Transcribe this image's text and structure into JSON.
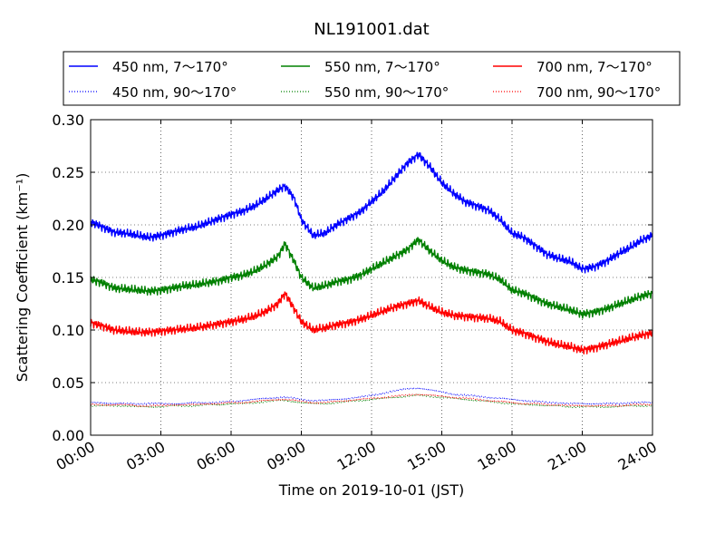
{
  "chart_data": {
    "type": "line",
    "title": "NL191001.dat",
    "xlabel": "Time on 2019-10-01 (JST)",
    "ylabel": "Scattering Coefficient (km⁻¹)",
    "xlim": [
      0,
      24
    ],
    "ylim": [
      0.0,
      0.3
    ],
    "xticks": [
      0,
      3,
      6,
      9,
      12,
      15,
      18,
      21,
      24
    ],
    "xtick_labels": [
      "00:00",
      "03:00",
      "06:00",
      "09:00",
      "12:00",
      "15:00",
      "18:00",
      "21:00",
      "24:00"
    ],
    "yticks": [
      0.0,
      0.05,
      0.1,
      0.15,
      0.2,
      0.25,
      0.3
    ],
    "ytick_labels": [
      "0.00",
      "0.05",
      "0.10",
      "0.15",
      "0.20",
      "0.25",
      "0.30"
    ],
    "grid": true,
    "legend_position": "top",
    "x_hours": [
      0,
      0.5,
      1,
      1.5,
      2,
      2.5,
      3,
      3.5,
      4,
      4.5,
      5,
      5.5,
      6,
      6.5,
      7,
      7.5,
      8,
      8.3,
      8.7,
      9,
      9.5,
      10,
      10.5,
      11,
      11.5,
      12,
      12.5,
      13,
      13.5,
      14,
      14.5,
      15,
      15.5,
      16,
      16.5,
      17,
      17.5,
      18,
      18.5,
      19,
      19.5,
      20,
      20.5,
      21,
      21.5,
      22,
      22.5,
      23,
      23.5,
      24
    ],
    "series": [
      {
        "name": "450 nm, 7～170°",
        "color": "#0000ff",
        "style": "solid",
        "values": [
          0.203,
          0.198,
          0.193,
          0.192,
          0.19,
          0.188,
          0.19,
          0.193,
          0.196,
          0.198,
          0.202,
          0.206,
          0.21,
          0.213,
          0.218,
          0.225,
          0.233,
          0.237,
          0.225,
          0.205,
          0.19,
          0.192,
          0.2,
          0.206,
          0.212,
          0.222,
          0.232,
          0.245,
          0.258,
          0.267,
          0.255,
          0.24,
          0.23,
          0.222,
          0.218,
          0.214,
          0.205,
          0.192,
          0.188,
          0.18,
          0.172,
          0.168,
          0.165,
          0.158,
          0.16,
          0.165,
          0.172,
          0.178,
          0.185,
          0.19
        ]
      },
      {
        "name": "450 nm, 90～170°",
        "color": "#0000ff",
        "style": "dotted",
        "values": [
          0.031,
          0.031,
          0.03,
          0.03,
          0.03,
          0.03,
          0.03,
          0.03,
          0.03,
          0.031,
          0.031,
          0.031,
          0.032,
          0.033,
          0.034,
          0.035,
          0.036,
          0.036,
          0.035,
          0.034,
          0.033,
          0.033,
          0.034,
          0.035,
          0.036,
          0.038,
          0.04,
          0.042,
          0.044,
          0.045,
          0.043,
          0.041,
          0.039,
          0.038,
          0.037,
          0.036,
          0.035,
          0.034,
          0.033,
          0.032,
          0.031,
          0.031,
          0.03,
          0.03,
          0.03,
          0.03,
          0.03,
          0.031,
          0.031,
          0.031
        ]
      },
      {
        "name": "550 nm, 7～170°",
        "color": "#008000",
        "style": "solid",
        "values": [
          0.148,
          0.145,
          0.14,
          0.139,
          0.138,
          0.137,
          0.138,
          0.14,
          0.142,
          0.143,
          0.145,
          0.147,
          0.15,
          0.152,
          0.156,
          0.162,
          0.17,
          0.182,
          0.165,
          0.15,
          0.14,
          0.142,
          0.146,
          0.148,
          0.152,
          0.158,
          0.164,
          0.17,
          0.176,
          0.186,
          0.175,
          0.166,
          0.16,
          0.157,
          0.155,
          0.153,
          0.148,
          0.138,
          0.135,
          0.13,
          0.125,
          0.122,
          0.119,
          0.115,
          0.117,
          0.12,
          0.124,
          0.128,
          0.132,
          0.135
        ]
      },
      {
        "name": "550 nm, 90～170°",
        "color": "#008000",
        "style": "dotted",
        "values": [
          0.028,
          0.028,
          0.028,
          0.028,
          0.027,
          0.027,
          0.027,
          0.028,
          0.028,
          0.028,
          0.029,
          0.029,
          0.03,
          0.03,
          0.031,
          0.032,
          0.033,
          0.033,
          0.032,
          0.031,
          0.03,
          0.03,
          0.031,
          0.032,
          0.033,
          0.034,
          0.035,
          0.036,
          0.037,
          0.038,
          0.037,
          0.036,
          0.035,
          0.034,
          0.033,
          0.032,
          0.031,
          0.03,
          0.029,
          0.029,
          0.028,
          0.028,
          0.027,
          0.027,
          0.027,
          0.027,
          0.027,
          0.028,
          0.028,
          0.028
        ]
      },
      {
        "name": "700 nm, 7～170°",
        "color": "#ff0000",
        "style": "solid",
        "values": [
          0.107,
          0.104,
          0.1,
          0.099,
          0.098,
          0.098,
          0.099,
          0.1,
          0.101,
          0.102,
          0.104,
          0.106,
          0.108,
          0.11,
          0.113,
          0.118,
          0.125,
          0.135,
          0.12,
          0.108,
          0.1,
          0.102,
          0.105,
          0.107,
          0.11,
          0.114,
          0.118,
          0.122,
          0.125,
          0.128,
          0.122,
          0.117,
          0.114,
          0.113,
          0.112,
          0.111,
          0.108,
          0.1,
          0.097,
          0.093,
          0.089,
          0.086,
          0.084,
          0.081,
          0.083,
          0.086,
          0.089,
          0.092,
          0.095,
          0.097
        ]
      },
      {
        "name": "700 nm, 90～170°",
        "color": "#ff0000",
        "style": "dotted",
        "values": [
          0.029,
          0.029,
          0.029,
          0.029,
          0.028,
          0.028,
          0.028,
          0.029,
          0.029,
          0.029,
          0.03,
          0.03,
          0.031,
          0.031,
          0.032,
          0.033,
          0.034,
          0.034,
          0.033,
          0.032,
          0.031,
          0.031,
          0.032,
          0.033,
          0.034,
          0.035,
          0.036,
          0.037,
          0.038,
          0.039,
          0.038,
          0.037,
          0.036,
          0.035,
          0.034,
          0.033,
          0.032,
          0.031,
          0.03,
          0.03,
          0.029,
          0.029,
          0.028,
          0.028,
          0.028,
          0.028,
          0.028,
          0.029,
          0.029,
          0.029
        ]
      }
    ]
  }
}
